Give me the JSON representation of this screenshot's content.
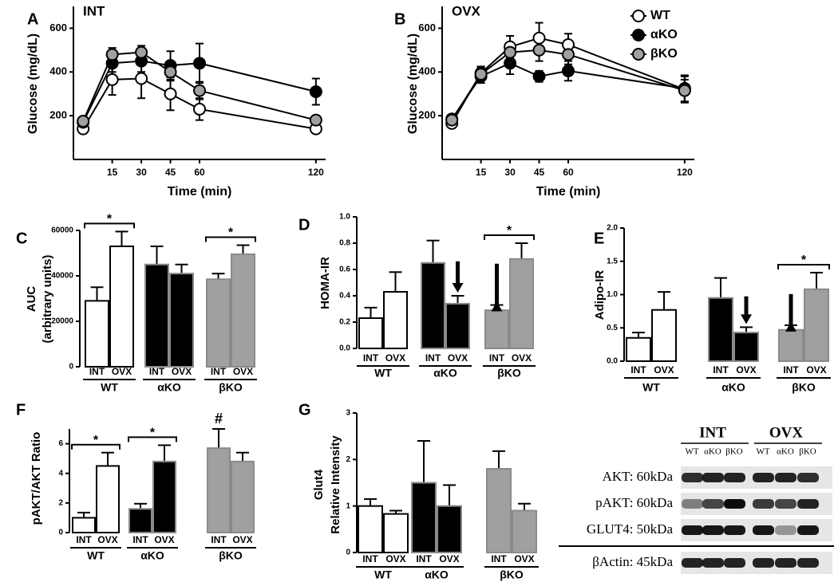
{
  "chart_data": [
    {
      "type": "line",
      "label": "A",
      "title": "INT",
      "xlabel": "Time (min)",
      "ylabel": "Glucose (mg/dL)",
      "x": [
        0,
        15,
        30,
        45,
        60,
        120
      ],
      "xlim": [
        -5,
        125
      ],
      "xticks": [
        15,
        30,
        45,
        60,
        120
      ],
      "ylim": [
        0,
        700
      ],
      "yticks": [
        200,
        400,
        600
      ],
      "series": [
        {
          "name": "WT",
          "color": "#ffffff",
          "values": [
            140,
            365,
            370,
            300,
            230,
            140
          ],
          "errors": [
            15,
            70,
            90,
            75,
            50,
            15
          ]
        },
        {
          "name": "αKO",
          "color": "#000000",
          "values": [
            170,
            440,
            450,
            430,
            440,
            310
          ],
          "errors": [
            20,
            40,
            50,
            65,
            90,
            60
          ]
        },
        {
          "name": "βKO",
          "color": "#a0a0a0",
          "values": [
            175,
            480,
            490,
            400,
            315,
            180
          ],
          "errors": [
            20,
            30,
            30,
            40,
            40,
            20
          ]
        }
      ]
    },
    {
      "type": "line",
      "label": "B",
      "title": "OVX",
      "xlabel": "Time (min)",
      "ylabel": "Glucose (mg/dL)",
      "x": [
        0,
        15,
        30,
        45,
        60,
        120
      ],
      "xlim": [
        -5,
        125
      ],
      "xticks": [
        15,
        30,
        45,
        60,
        120
      ],
      "ylim": [
        0,
        700
      ],
      "yticks": [
        200,
        400,
        600
      ],
      "legend": "upper right",
      "series": [
        {
          "name": "WT",
          "color": "#ffffff",
          "values": [
            165,
            395,
            515,
            555,
            525,
            320
          ],
          "errors": [
            20,
            30,
            50,
            70,
            50,
            60
          ]
        },
        {
          "name": "αKO",
          "color": "#000000",
          "values": [
            185,
            380,
            440,
            380,
            405,
            325
          ],
          "errors": [
            20,
            30,
            50,
            25,
            45,
            60
          ]
        },
        {
          "name": "βKO",
          "color": "#a0a0a0",
          "values": [
            180,
            390,
            490,
            500,
            480,
            315
          ],
          "errors": [
            20,
            30,
            40,
            50,
            45,
            50
          ]
        }
      ]
    },
    {
      "type": "bar",
      "label": "C",
      "ylabel": [
        "AUC",
        "(arbitrary units)"
      ],
      "categories": [
        "WT",
        "αKO",
        "βKO"
      ],
      "colors": [
        "#ffffff",
        "#000000",
        "#a0a0a0"
      ],
      "ylim": [
        0,
        60000
      ],
      "yticks": [
        0,
        20000,
        40000,
        60000
      ],
      "series": [
        {
          "name": "INT",
          "values": [
            29000,
            45000,
            38500
          ],
          "errors": [
            6000,
            8000,
            2500
          ]
        },
        {
          "name": "OVX",
          "values": [
            53000,
            41000,
            49500
          ],
          "errors": [
            6500,
            4000,
            4000
          ]
        }
      ],
      "brackets": [
        {
          "text": "*",
          "over": "WT"
        },
        {
          "text": "*",
          "over": "βKO"
        }
      ]
    },
    {
      "type": "bar",
      "label": "D",
      "ylabel": [
        "HOMA-IR"
      ],
      "categories": [
        "WT",
        "αKO",
        "βKO"
      ],
      "colors": [
        "#ffffff",
        "#000000",
        "#a0a0a0"
      ],
      "ylim": [
        0,
        1.0
      ],
      "yticks": [
        {
          "value": 0,
          "label": "0.0"
        },
        0.2,
        0.4,
        0.6,
        0.8,
        {
          "value": 1.0,
          "label": "1.0"
        }
      ],
      "series": [
        {
          "name": "INT",
          "values": [
            0.23,
            0.65,
            0.29
          ],
          "errors": [
            0.08,
            0.17,
            0.04
          ]
        },
        {
          "name": "OVX",
          "values": [
            0.43,
            0.34,
            0.68
          ],
          "errors": [
            0.15,
            0.06,
            0.12
          ]
        }
      ],
      "brackets": [
        {
          "text": "*",
          "over": "βKO"
        }
      ],
      "arrows": [
        {
          "over": "αKO",
          "series": "OVX",
          "direction": "down"
        },
        {
          "over": "βKO",
          "series": "INT",
          "direction": "up"
        }
      ]
    },
    {
      "type": "bar",
      "label": "E",
      "ylabel": [
        "Adipo-IR"
      ],
      "categories": [
        "WT",
        "αKO",
        "βKO"
      ],
      "colors": [
        "#ffffff",
        "#000000",
        "#a0a0a0"
      ],
      "ylim": [
        0,
        2.0
      ],
      "yticks": [
        {
          "value": 0,
          "label": "0.0"
        },
        0.5,
        {
          "value": 1.0,
          "label": "1.0"
        },
        1.5,
        {
          "value": 2.0,
          "label": "2.0"
        }
      ],
      "series": [
        {
          "name": "INT",
          "values": [
            0.35,
            0.95,
            0.47
          ],
          "errors": [
            0.08,
            0.3,
            0.07
          ]
        },
        {
          "name": "OVX",
          "values": [
            0.77,
            0.43,
            1.08
          ],
          "errors": [
            0.27,
            0.08,
            0.25
          ]
        }
      ],
      "brackets": [
        {
          "text": "*",
          "over": "βKO"
        }
      ],
      "arrows": [
        {
          "over": "αKO",
          "series": "OVX",
          "direction": "down"
        },
        {
          "over": "βKO",
          "series": "INT",
          "direction": "up"
        }
      ]
    },
    {
      "type": "bar",
      "label": "F",
      "ylabel": [
        "pAKT/AKT Ratio"
      ],
      "categories": [
        "WT",
        "αKO",
        "βKO"
      ],
      "colors": [
        "#ffffff",
        "#000000",
        "#a0a0a0"
      ],
      "ylim": [
        0,
        7
      ],
      "yticks": [
        0,
        2,
        4,
        6
      ],
      "series": [
        {
          "name": "INT",
          "values": [
            1.0,
            1.6,
            5.7
          ],
          "errors": [
            0.35,
            0.35,
            1.3
          ]
        },
        {
          "name": "OVX",
          "values": [
            4.5,
            4.8,
            4.8
          ],
          "errors": [
            0.9,
            1.1,
            0.6
          ]
        }
      ],
      "brackets": [
        {
          "text": "*",
          "over": "WT"
        },
        {
          "text": "*",
          "over": "αKO"
        }
      ],
      "markers": [
        {
          "text": "#",
          "over": "βKO",
          "series": "INT"
        }
      ]
    },
    {
      "type": "bar",
      "label": "G",
      "ylabel": [
        "Glut4",
        "Relative Intensity"
      ],
      "categories": [
        "WT",
        "αKO",
        "βKO"
      ],
      "colors": [
        "#ffffff",
        "#000000",
        "#a0a0a0"
      ],
      "ylim": [
        0,
        3
      ],
      "yticks": [
        0,
        1,
        2,
        3
      ],
      "series": [
        {
          "name": "INT",
          "values": [
            1.0,
            1.5,
            1.8
          ],
          "errors": [
            0.15,
            0.9,
            0.38
          ]
        },
        {
          "name": "OVX",
          "values": [
            0.83,
            1.0,
            0.9
          ],
          "errors": [
            0.07,
            0.45,
            0.15
          ]
        }
      ]
    }
  ],
  "blot": {
    "groups": [
      "INT",
      "OVX"
    ],
    "lanes": [
      "WT",
      "αKO",
      "βKO",
      "WT",
      "αKO",
      "βKO"
    ],
    "rows": [
      "AKT: 60kDa",
      "pAKT: 60kDa",
      "GLUT4: 50kDa",
      "βActin: 45kDa"
    ]
  }
}
